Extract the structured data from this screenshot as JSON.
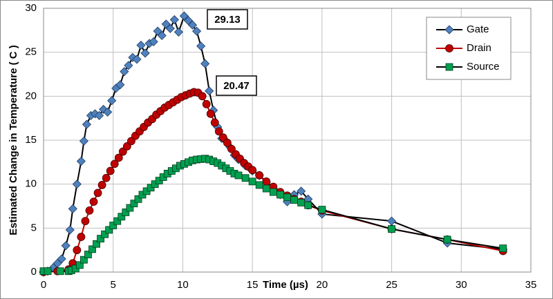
{
  "chart_data": {
    "type": "line",
    "xlabel": "Time (µs)",
    "ylabel": "Estimated Change in Temperature ( C )",
    "annotations": [
      "29.13",
      "20.47"
    ],
    "xlim": [
      0,
      35
    ],
    "xticks": [
      0,
      5,
      10,
      15,
      20,
      25,
      30,
      35
    ],
    "ylim": [
      0,
      30
    ],
    "yticks": [
      0,
      5,
      10,
      15,
      20,
      25,
      30
    ],
    "grid": true,
    "legend": "upper right",
    "series": [
      {
        "name": "Gate",
        "color": "#4f81bd",
        "line_color": "#000000",
        "marker": "diamond",
        "x": [
          0,
          0.3,
          0.7,
          1,
          1.3,
          1.6,
          1.9,
          2.1,
          2.4,
          2.7,
          2.9,
          3.1,
          3.4,
          3.7,
          4,
          4.3,
          4.6,
          4.9,
          5.2,
          5.5,
          5.8,
          6.1,
          6.4,
          6.7,
          7,
          7.3,
          7.6,
          7.9,
          8.2,
          8.5,
          8.8,
          9.1,
          9.4,
          9.7,
          10.1,
          10.4,
          10.7,
          11,
          11.3,
          11.6,
          11.9,
          12.2,
          12.5,
          12.8,
          13.1,
          13.4,
          13.7,
          14,
          14.5,
          15,
          15.5,
          16,
          16.5,
          17,
          17.5,
          18,
          18.5,
          19,
          20,
          25,
          29,
          33
        ],
        "values": [
          0,
          0.1,
          0.5,
          1,
          1.5,
          3,
          4.8,
          7.2,
          10,
          12.6,
          14.9,
          16.8,
          17.8,
          18,
          17.8,
          18.5,
          18.2,
          19.5,
          20.9,
          21.3,
          22.8,
          23.5,
          24.4,
          24.2,
          25.8,
          24.9,
          26,
          26.2,
          27.4,
          26.9,
          28.2,
          27.7,
          28.7,
          27.3,
          29.13,
          28.6,
          28.1,
          27.4,
          25.7,
          23.7,
          20.6,
          18.4,
          16.5,
          15.2,
          14.9,
          14.2,
          13.3,
          12.8,
          12.1,
          11.5,
          11,
          10.2,
          9.5,
          8.8,
          8,
          8.8,
          9.2,
          8.3,
          6.6,
          5.8,
          3.3,
          2.6
        ]
      },
      {
        "name": "Drain",
        "color": "#c00000",
        "line_color": "#c00000",
        "marker": "circle",
        "x": [
          0,
          1,
          1.8,
          2.1,
          2.4,
          2.7,
          3,
          3.3,
          3.6,
          3.9,
          4.2,
          4.5,
          4.8,
          5.1,
          5.4,
          5.7,
          6,
          6.3,
          6.6,
          6.9,
          7.2,
          7.5,
          7.8,
          8.1,
          8.4,
          8.7,
          9,
          9.3,
          9.6,
          9.9,
          10.2,
          10.5,
          10.8,
          11.1,
          11.4,
          11.7,
          12,
          12.3,
          12.6,
          12.9,
          13.2,
          13.5,
          13.8,
          14.1,
          14.4,
          14.7,
          15,
          15.5,
          16,
          16.5,
          17,
          17.5,
          18,
          18.5,
          19,
          20,
          25,
          29,
          33
        ],
        "values": [
          0,
          0.1,
          0.3,
          1,
          2.5,
          4,
          5.8,
          7,
          8,
          9,
          9.9,
          10.7,
          11.5,
          12.3,
          13,
          13.7,
          14.3,
          14.9,
          15.5,
          16,
          16.5,
          17,
          17.4,
          17.9,
          18.3,
          18.7,
          19,
          19.3,
          19.6,
          19.9,
          20.1,
          20.3,
          20.47,
          20.4,
          20,
          19.1,
          18,
          17,
          16,
          15.3,
          14.7,
          14,
          13.4,
          12.9,
          12.4,
          12,
          11.6,
          11,
          10.3,
          9.7,
          9.1,
          8.7,
          8.3,
          8,
          7.6,
          7,
          4.9,
          3.7,
          2.4
        ]
      },
      {
        "name": "Source",
        "color": "#00a050",
        "line_color": "#000000",
        "marker": "square",
        "x": [
          0,
          0.3,
          1.2,
          1.8,
          2,
          2.3,
          2.6,
          2.9,
          3.2,
          3.5,
          3.8,
          4.1,
          4.4,
          4.7,
          5,
          5.3,
          5.6,
          5.9,
          6.2,
          6.5,
          6.8,
          7.1,
          7.4,
          7.7,
          8,
          8.3,
          8.6,
          8.9,
          9.2,
          9.5,
          9.8,
          10.1,
          10.4,
          10.7,
          11,
          11.3,
          11.6,
          11.9,
          12.2,
          12.5,
          12.8,
          13.1,
          13.4,
          13.7,
          14,
          14.5,
          15,
          15.5,
          16,
          16.5,
          17,
          17.5,
          18,
          18.5,
          19,
          20,
          25,
          29,
          33
        ],
        "values": [
          0.1,
          0.1,
          0.1,
          0.1,
          0.2,
          0.4,
          0.8,
          1.4,
          2,
          2.6,
          3.2,
          3.8,
          4.3,
          4.8,
          5.3,
          5.8,
          6.3,
          6.8,
          7.3,
          7.8,
          8.3,
          8.8,
          9.2,
          9.6,
          10,
          10.4,
          10.8,
          11.2,
          11.5,
          11.8,
          12.1,
          12.3,
          12.5,
          12.7,
          12.8,
          12.85,
          12.9,
          12.8,
          12.6,
          12.4,
          12.1,
          11.8,
          11.5,
          11.2,
          11,
          10.7,
          10.3,
          9.9,
          9.5,
          9.1,
          8.8,
          8.5,
          8.2,
          7.9,
          7.6,
          7.1,
          4.9,
          3.7,
          2.7
        ]
      }
    ]
  }
}
